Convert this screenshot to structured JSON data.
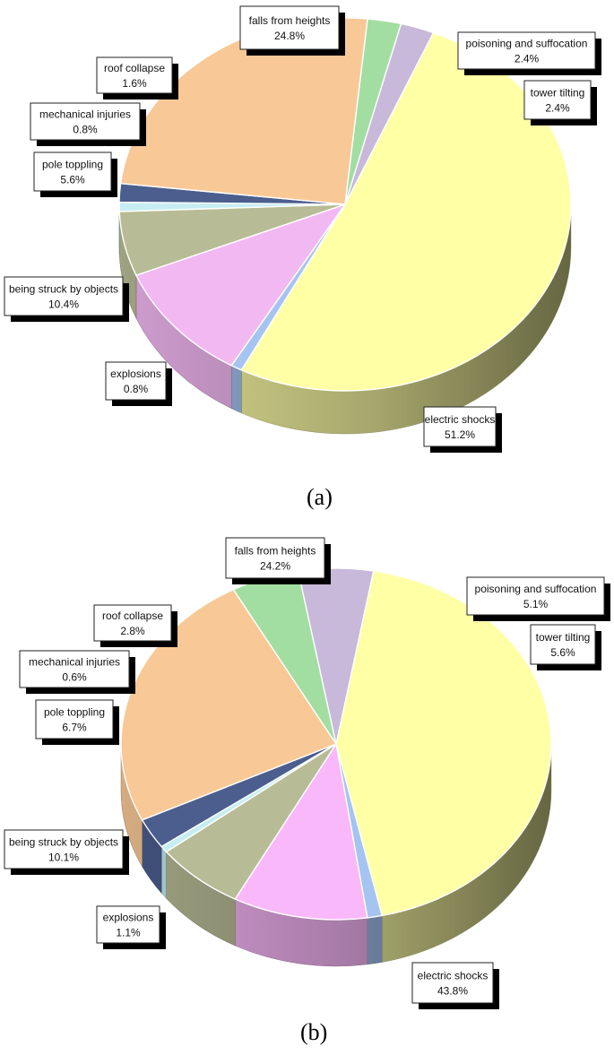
{
  "chart_data": [
    {
      "type": "pie",
      "caption": "(a)",
      "slices": [
        {
          "label": "electric shocks",
          "value": 51.2,
          "value_text": "51.2%",
          "color": "#FFFFA6"
        },
        {
          "label": "explosions",
          "value": 0.8,
          "value_text": "0.8%",
          "color": "#A6C4F2"
        },
        {
          "label": "being struck by objects",
          "value": 10.4,
          "value_text": "10.4%",
          "color": "#F2B8F2"
        },
        {
          "label": "pole toppling",
          "value": 5.6,
          "value_text": "5.6%",
          "color": "#B8BC96"
        },
        {
          "label": "mechanical injuries",
          "value": 0.8,
          "value_text": "0.8%",
          "color": "#C6EEF2"
        },
        {
          "label": "roof collapse",
          "value": 1.6,
          "value_text": "1.6%",
          "color": "#4B5E8E"
        },
        {
          "label": "falls from heights",
          "value": 24.8,
          "value_text": "24.8%",
          "color": "#F8C896"
        },
        {
          "label": "poisoning and suffocation",
          "value": 2.4,
          "value_text": "2.4%",
          "color": "#A2DEA2"
        },
        {
          "label": "tower tilting",
          "value": 2.4,
          "value_text": "2.4%",
          "color": "#C8B8DA"
        }
      ]
    },
    {
      "type": "pie",
      "caption": "(b)",
      "slices": [
        {
          "label": "electric shocks",
          "value": 43.8,
          "value_text": "43.8%",
          "color": "#FFFFA6"
        },
        {
          "label": "explosions",
          "value": 1.1,
          "value_text": "1.1%",
          "color": "#A6C4F2"
        },
        {
          "label": "being struck by objects",
          "value": 10.1,
          "value_text": "10.1%",
          "color": "#F9B8F9"
        },
        {
          "label": "pole toppling",
          "value": 6.7,
          "value_text": "6.7%",
          "color": "#B8BC96"
        },
        {
          "label": "mechanical injuries",
          "value": 0.6,
          "value_text": "0.6%",
          "color": "#C6EEF2"
        },
        {
          "label": "roof collapse",
          "value": 2.8,
          "value_text": "2.8%",
          "color": "#4B5E8E"
        },
        {
          "label": "falls from heights",
          "value": 24.2,
          "value_text": "24.2%",
          "color": "#F8C896"
        },
        {
          "label": "poisoning and suffocation",
          "value": 5.1,
          "value_text": "5.1%",
          "color": "#A2DEA2"
        },
        {
          "label": "tower tilting",
          "value": 5.6,
          "value_text": "5.6%",
          "color": "#C8B8DA"
        }
      ]
    }
  ]
}
